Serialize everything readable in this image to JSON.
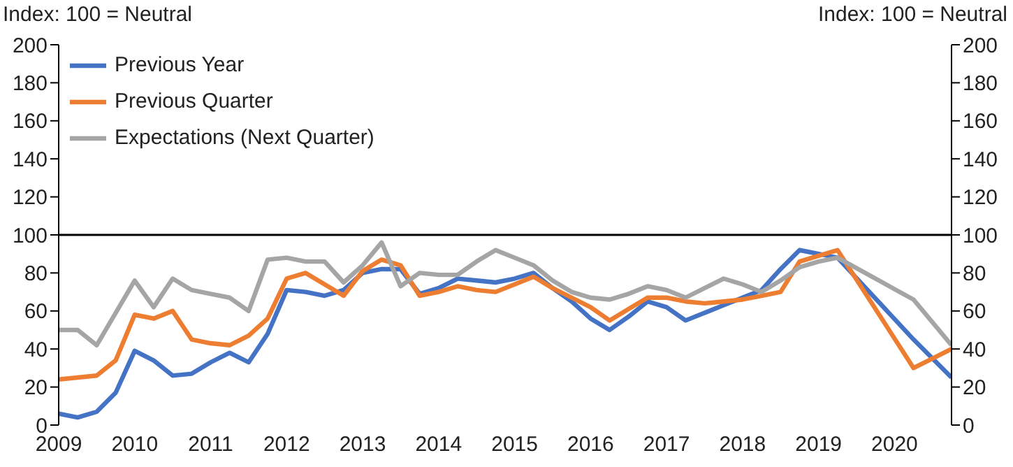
{
  "chart_data": {
    "type": "line",
    "annotations": [
      "Index: 100 = Neutral",
      "Index: 100 = Neutral"
    ],
    "x": [
      2009,
      2009.25,
      2009.5,
      2009.75,
      2010,
      2010.25,
      2010.5,
      2010.75,
      2011,
      2011.25,
      2011.5,
      2011.75,
      2012,
      2012.25,
      2012.5,
      2012.75,
      2013,
      2013.25,
      2013.5,
      2013.75,
      2014,
      2014.25,
      2014.5,
      2014.75,
      2015,
      2015.25,
      2015.5,
      2015.75,
      2016,
      2016.25,
      2016.5,
      2016.75,
      2017,
      2017.25,
      2017.5,
      2017.75,
      2018,
      2018.25,
      2018.5,
      2018.75,
      2019,
      2019.25,
      2020.25,
      2020.75
    ],
    "series": [
      {
        "name": "Previous Year",
        "color": "#4472c4",
        "values": [
          6,
          4,
          7,
          17,
          39,
          34,
          26,
          27,
          33,
          38,
          33,
          48,
          71,
          70,
          68,
          71,
          80,
          82,
          82,
          69,
          72,
          77,
          76,
          75,
          77,
          80,
          72,
          65,
          56,
          50,
          57,
          65,
          62,
          55,
          59,
          63,
          67,
          71,
          82,
          92,
          90,
          88,
          45,
          25
        ]
      },
      {
        "name": "Previous Quarter",
        "color": "#ed7d31",
        "values": [
          24,
          25,
          26,
          34,
          58,
          56,
          60,
          45,
          43,
          42,
          47,
          56,
          77,
          80,
          74,
          68,
          81,
          87,
          84,
          68,
          70,
          73,
          71,
          70,
          74,
          78,
          72,
          67,
          62,
          55,
          61,
          67,
          67,
          65,
          64,
          65,
          66,
          68,
          70,
          86,
          89,
          92,
          30,
          40
        ]
      },
      {
        "name": "Expectations (Next Quarter)",
        "color": "#a5a5a5",
        "values": [
          50,
          50,
          42,
          59,
          76,
          62,
          77,
          71,
          69,
          67,
          60,
          87,
          88,
          86,
          86,
          75,
          84,
          96,
          73,
          80,
          79,
          79,
          86,
          92,
          88,
          84,
          76,
          70,
          67,
          66,
          69,
          73,
          71,
          67,
          72,
          77,
          74,
          70,
          76,
          83,
          86,
          88,
          66,
          42
        ]
      }
    ],
    "xlim": [
      2009,
      2020.75
    ],
    "xticks": [
      2009,
      2010,
      2011,
      2012,
      2013,
      2014,
      2015,
      2016,
      2017,
      2018,
      2019,
      2020
    ],
    "ylim": [
      0,
      200
    ],
    "yticks": [
      0,
      20,
      40,
      60,
      80,
      100,
      120,
      140,
      160,
      180,
      200
    ],
    "y2lim": [
      0,
      200
    ],
    "y2ticks": [
      0,
      20,
      40,
      60,
      80,
      100,
      120,
      140,
      160,
      180,
      200
    ],
    "ref_lines": [
      {
        "axis": "y",
        "value": 100,
        "color": "#000000"
      }
    ],
    "legend": "top left",
    "grid": false,
    "marker": "none",
    "line_style": "solid"
  }
}
